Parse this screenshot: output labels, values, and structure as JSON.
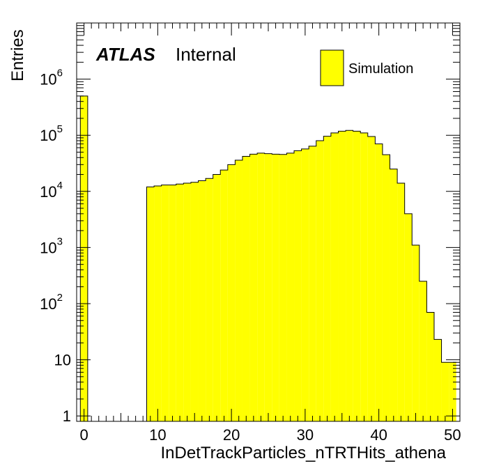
{
  "chart_data": {
    "type": "bar",
    "title": "",
    "xlabel": "InDetTrackParticles_nTRTHits_athena",
    "ylabel": "Entries",
    "xlim": [
      -1,
      51
    ],
    "ylim": [
      0.8,
      10000000
    ],
    "ylog": true,
    "bin_width": 1,
    "x_ticks": [
      0,
      10,
      20,
      30,
      40,
      50
    ],
    "y_ticks": [
      {
        "value": 1,
        "base": "1",
        "exp": ""
      },
      {
        "value": 10,
        "base": "10",
        "exp": ""
      },
      {
        "value": 100,
        "base": "10",
        "exp": "2"
      },
      {
        "value": 1000,
        "base": "10",
        "exp": "3"
      },
      {
        "value": 10000,
        "base": "10",
        "exp": "4"
      },
      {
        "value": 100000,
        "base": "10",
        "exp": "5"
      },
      {
        "value": 1000000,
        "base": "10",
        "exp": "6"
      }
    ],
    "bins": [
      -0.5,
      0.5,
      1.5,
      2.5,
      3.5,
      4.5,
      5.5,
      6.5,
      7.5,
      8.5,
      9.5,
      10.5,
      11.5,
      12.5,
      13.5,
      14.5,
      15.5,
      16.5,
      17.5,
      18.5,
      19.5,
      20.5,
      21.5,
      22.5,
      23.5,
      24.5,
      25.5,
      26.5,
      27.5,
      28.5,
      29.5,
      30.5,
      31.5,
      32.5,
      33.5,
      34.5,
      35.5,
      36.5,
      37.5,
      38.5,
      39.5,
      40.5,
      41.5,
      42.5,
      43.5,
      44.5,
      45.5,
      46.5,
      47.5,
      48.5,
      49.5
    ],
    "values": [
      500000,
      0,
      0,
      0,
      0,
      0,
      0,
      0,
      0,
      12000,
      12500,
      13000,
      13000,
      13500,
      14000,
      14500,
      15500,
      17000,
      20000,
      24000,
      30000,
      36000,
      42000,
      46000,
      48000,
      47000,
      46000,
      45500,
      48000,
      53000,
      57000,
      64000,
      80000,
      96000,
      110000,
      118000,
      122000,
      118000,
      110000,
      95000,
      70000,
      45000,
      25000,
      14000,
      4000,
      1100,
      250,
      70,
      23,
      9,
      9
    ],
    "fill_color": "#ffff00",
    "line_color": "#000000",
    "grid": false,
    "legend": {
      "position": "top-right",
      "entries": [
        {
          "label": "Simulation",
          "color": "#ffff00"
        }
      ]
    },
    "annotations": {
      "atlas": "ATLAS",
      "status": "Internal"
    }
  }
}
